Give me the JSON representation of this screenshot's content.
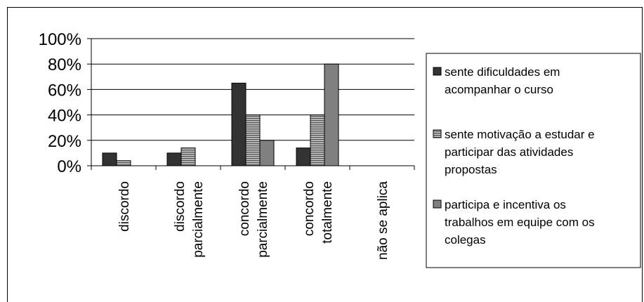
{
  "chart_data": {
    "type": "bar",
    "title": "",
    "xlabel": "",
    "ylabel": "",
    "ylim": [
      0,
      100
    ],
    "yticks": [
      "0%",
      "20%",
      "40%",
      "60%",
      "80%",
      "100%"
    ],
    "categories": [
      [
        "discordo"
      ],
      [
        "discordo",
        "parcialmente"
      ],
      [
        "concordo",
        "parcialmente"
      ],
      [
        "concordo",
        "totalmente"
      ],
      [
        "não se aplica"
      ]
    ],
    "series": [
      {
        "name": [
          "sente dificuldades em",
          "acompanhar o curso"
        ],
        "color": "#333333",
        "pattern": "solid",
        "values": [
          10,
          10,
          65,
          14,
          0
        ]
      },
      {
        "name": [
          "sente motivação a estudar e",
          "participar das atividades",
          "propostas"
        ],
        "color": "#8c8c8c",
        "pattern": "hstripes",
        "values": [
          4,
          14,
          40,
          40,
          0
        ]
      },
      {
        "name": [
          "participa e incentiva os",
          "trabalhos em equipe com os",
          "colegas"
        ],
        "color": "#808080",
        "pattern": "solid",
        "values": [
          0,
          0,
          20,
          80,
          0
        ]
      }
    ],
    "grid": true,
    "legend_position": "right"
  }
}
